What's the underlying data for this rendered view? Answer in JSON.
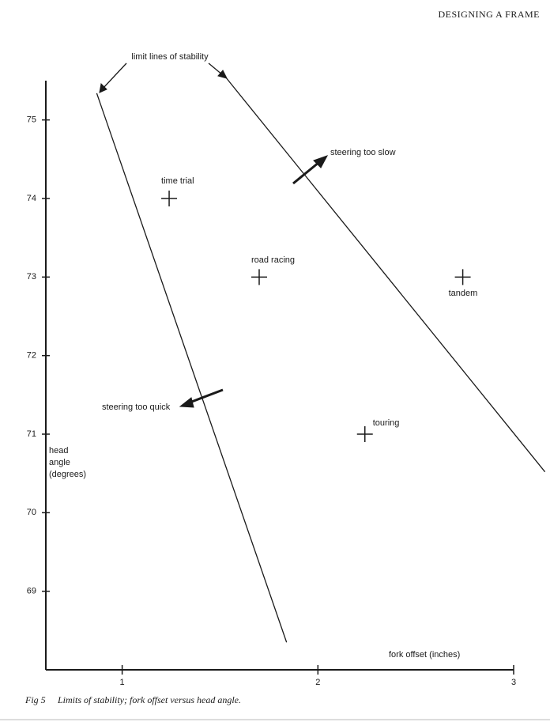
{
  "header": "DESIGNING A FRAME",
  "chart_data": {
    "type": "scatter",
    "annotations": [
      "limit lines of stability",
      "steering too slow",
      "steering too quick"
    ],
    "ylabel": [
      "head",
      "angle",
      "(degrees)"
    ],
    "xlabel": "fork offset (inches)",
    "points": {
      "labels": [
        "time trial",
        "road racing",
        "tandem",
        "touring"
      ],
      "x": [
        1.24,
        1.7,
        2.74,
        2.24
      ],
      "y": [
        74,
        73,
        73,
        71
      ]
    },
    "lines": [
      {
        "x": [
          0.87,
          1.84
        ],
        "y": [
          75.34,
          68.35
        ]
      },
      {
        "x": [
          1.53,
          3.16
        ],
        "y": [
          75.54,
          70.52
        ]
      }
    ],
    "xlim": [
      0.61,
      3
    ],
    "ylim": [
      68,
      75.5
    ],
    "xticks": [
      1,
      2,
      3
    ],
    "yticks": [
      69,
      70,
      71,
      72,
      73,
      74,
      75
    ],
    "color": "#1a1a1a"
  },
  "caption": {
    "label": "Fig 5",
    "text": "Limits of stability; fork offset versus head angle."
  }
}
